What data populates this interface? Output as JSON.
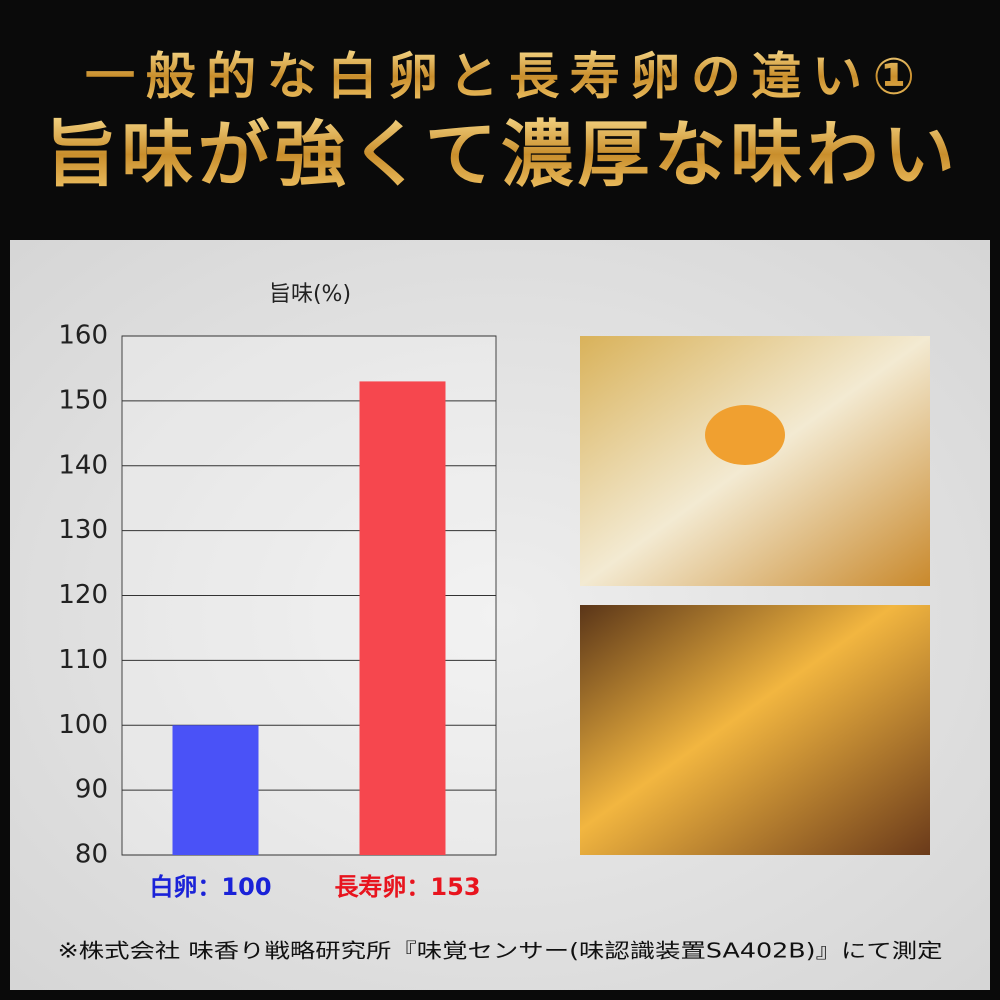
{
  "chart_data": {
    "type": "bar",
    "title": "一般的な白卵と長寿卵の違い①",
    "subtitle": "旨味が強くて濃厚な味わい",
    "ylabel": "旨味(%)",
    "values": [
      100,
      153
    ],
    "value_labels": [
      "白卵：100",
      "長寿卵：153"
    ],
    "colors": [
      "#4a52f7",
      "#f6474e"
    ],
    "ylim": [
      80,
      160
    ],
    "yticks": [
      80,
      90,
      100,
      110,
      120,
      130,
      140,
      150,
      160
    ],
    "grid": true,
    "note": "※株式会社 味香り戦略研究所『味覚センサー(味認識装置SA402B)』にて測定"
  }
}
